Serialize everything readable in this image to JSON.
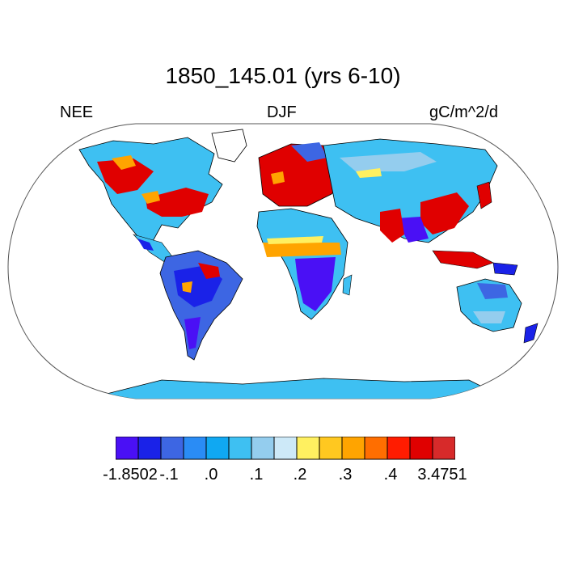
{
  "title": "1850_145.01 (yrs 6-10)",
  "left_label": "NEE",
  "center_label": "DJF",
  "right_label": "gC/m^2/d",
  "colorbar": {
    "colors": [
      "#4a10f5",
      "#1a22e8",
      "#3d66e3",
      "#2a8cf5",
      "#10a8f2",
      "#3ec0f2",
      "#94cdee",
      "#cde9f8",
      "#fff060",
      "#ffc820",
      "#ffa400",
      "#ff6e00",
      "#ff1c00",
      "#e00000",
      "#d72a2a"
    ],
    "labels": [
      "-1.8502",
      "-.1",
      ".0",
      ".1",
      ".2",
      ".3",
      ".4",
      "3.4751"
    ]
  },
  "legend_colors": {
    "ocean": "#ffffff",
    "land_default": "#3ec0f2",
    "coast": "#000000"
  }
}
